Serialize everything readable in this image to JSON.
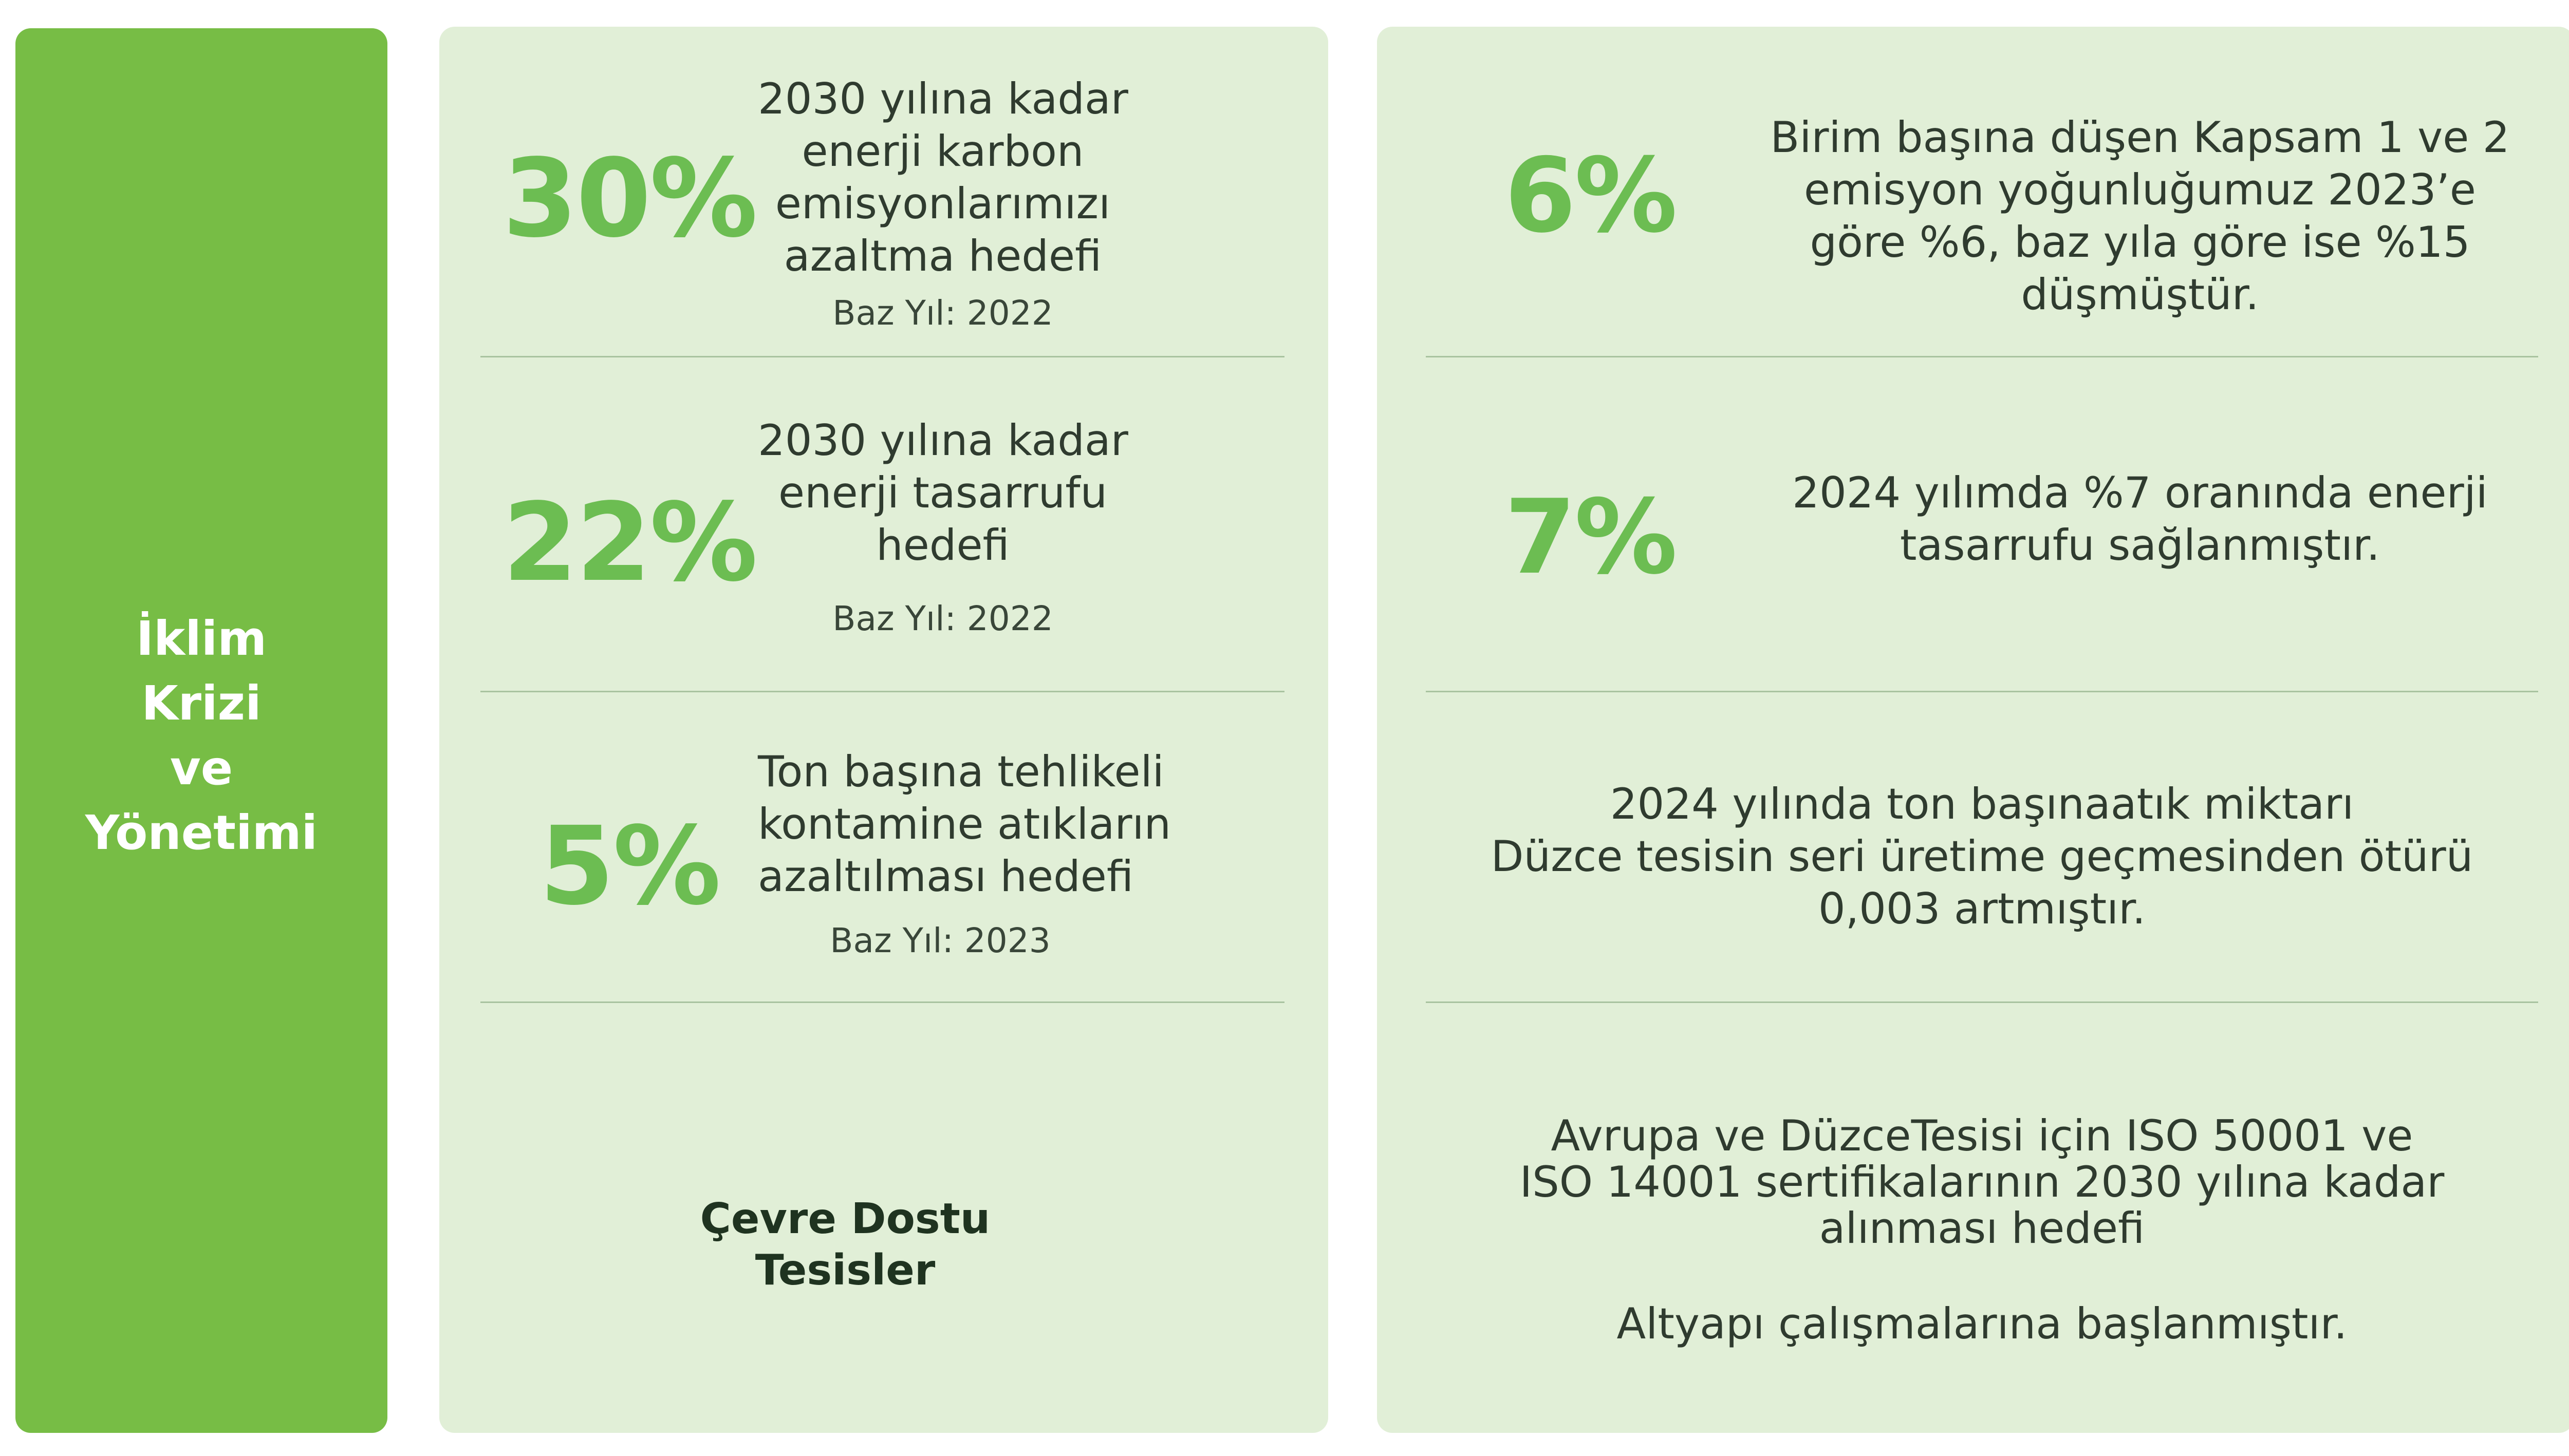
{
  "sidebar": {
    "title": "İklim\nKrizi\nve\nYönetimi"
  },
  "targets": [
    {
      "percent": "30%",
      "lines": [
        "2030 yılına kadar",
        "enerji karbon",
        "emisyonlarımızı",
        "azaltma hedefi"
      ],
      "base": "Baz Yıl: 2022"
    },
    {
      "percent": "22%",
      "lines": [
        "2030 yılına kadar",
        "enerji tasarrufu",
        "hedefi"
      ],
      "base": "Baz Yıl: 2022"
    },
    {
      "percent": "5%",
      "lines": [
        "Ton başına tehlikeli",
        "kontamine atıkların",
        "azaltılması hedefi"
      ],
      "base": "Baz Yıl: 2023"
    }
  ],
  "facilities": {
    "lines": [
      "Çevre Dostu",
      "Tesisler"
    ]
  },
  "results": [
    {
      "percent": "6%",
      "lines": [
        "Birim başına düşen Kapsam 1 ve 2",
        "emisyon yoğunluğumuz 2023’e",
        "göre %6, baz yıla göre ise %15",
        "düşmüştür."
      ]
    },
    {
      "percent": "7%",
      "lines": [
        "2024 yılımda %7 oranında enerji",
        "tasarrufu sağlanmıştır."
      ]
    },
    {
      "percent": "",
      "lines": [
        "2024 yılında ton başınaatık miktarı",
        "Düzce tesisin seri üretime geçmesinden ötürü",
        "0,003 artmıştır."
      ]
    }
  ],
  "certification": {
    "lines": [
      "Avrupa ve DüzceTesisi için ISO 50001 ve",
      "ISO 14001 sertifikalarının 2030 yılına kadar",
      "alınması hedefi"
    ],
    "status": "Altyapı çalışmalarına başlanmıştır."
  },
  "colors": {
    "sidebar": "#77bd45",
    "panel": "#e1efd7",
    "accent": "#6cbd52"
  }
}
